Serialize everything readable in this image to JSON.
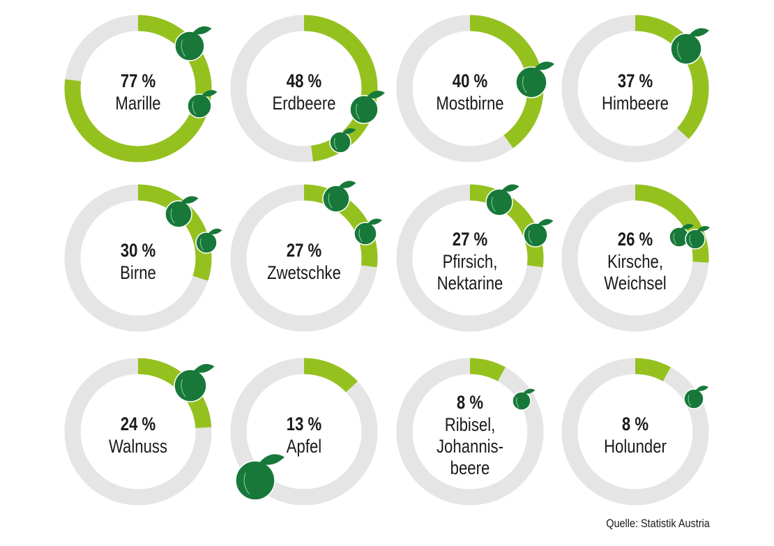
{
  "chart_data": {
    "type": "donut",
    "unit": "%",
    "colors": {
      "filled": "#95c11f",
      "remaining": "#e5e5e5",
      "icon": "#17783a"
    },
    "items": [
      {
        "label": "Marille",
        "value": 77,
        "display": "77 %",
        "icon": "apricot-icon"
      },
      {
        "label": "Erdbeere",
        "value": 48,
        "display": "48 %",
        "icon": "strawberry-icon"
      },
      {
        "label": "Mostbirne",
        "value": 40,
        "display": "40 %",
        "icon": "perry-pear-icon"
      },
      {
        "label": "Himbeere",
        "value": 37,
        "display": "37 %",
        "icon": "raspberry-icon"
      },
      {
        "label": "Birne",
        "value": 30,
        "display": "30 %",
        "icon": "pear-icon"
      },
      {
        "label": "Zwetschke",
        "value": 27,
        "display": "27 %",
        "icon": "plum-icon"
      },
      {
        "label": "Pfirsich,\nNektarine",
        "value": 27,
        "display": "27 %",
        "icon": "peach-icon"
      },
      {
        "label": "Kirsche,\nWeichsel",
        "value": 26,
        "display": "26 %",
        "icon": "cherry-icon"
      },
      {
        "label": "Walnuss",
        "value": 24,
        "display": "24 %",
        "icon": "walnut-icon"
      },
      {
        "label": "Apfel",
        "value": 13,
        "display": "13 %",
        "icon": "apple-icon"
      },
      {
        "label": "Ribisel,\nJohannis-\nbeere",
        "value": 8,
        "display": "8 %",
        "icon": "currant-icon"
      },
      {
        "label": "Holunder",
        "value": 8,
        "display": "8 %",
        "icon": "elderberry-icon"
      }
    ]
  },
  "source": "Quelle: Statistik Austria"
}
